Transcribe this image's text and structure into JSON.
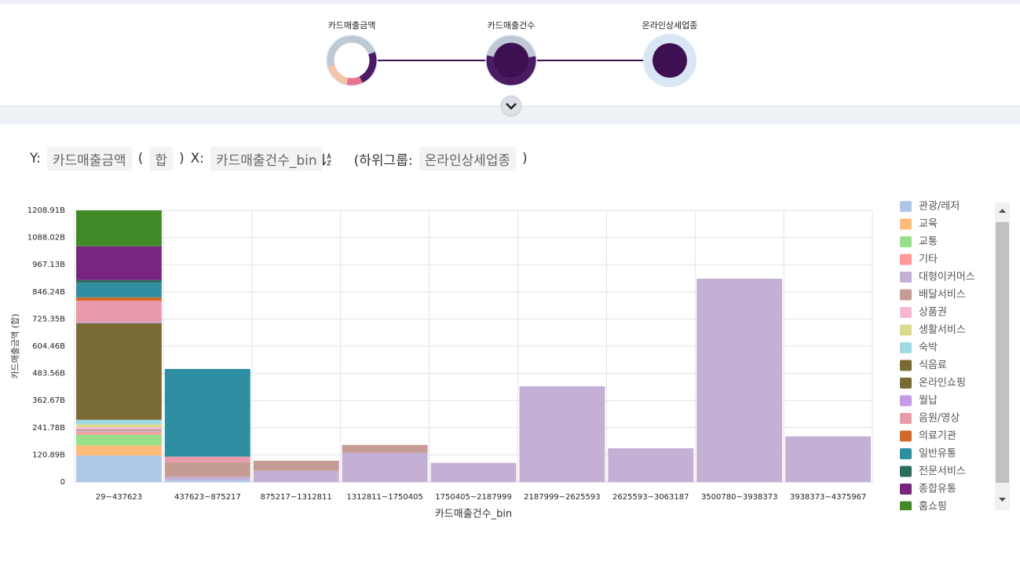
{
  "pipeline": {
    "nodes": [
      "카드매출금액",
      "카드매출건수",
      "온라인상세업종"
    ]
  },
  "query": {
    "y_prefix": "Y:",
    "y_field": "카드매출금액",
    "open": "(",
    "agg": "합",
    "close": ")",
    "x_prefix": "X:",
    "x_field": "카드매출건수_bin",
    "group_prefix": "(하위그룹:",
    "group_field": "온라인상세업종",
    "group_close": ")"
  },
  "chart_data": {
    "type": "bar",
    "stacked": true,
    "grid": true,
    "legend": "right",
    "x_label": "카드매출건수_bin",
    "y_label": "카드매출금액 (합)",
    "categories": [
      "29~437623",
      "437623~875217",
      "875217~1312811",
      "1312811~1750405",
      "1750405~2187999",
      "2187999~2625593",
      "2625593~3063187",
      "3500780~3938373",
      "3938373~4375967"
    ],
    "ylim": [
      0,
      1208.91
    ],
    "yticks": [
      0,
      {
        "value": 120.89,
        "label": "120.89B"
      },
      {
        "value": 241.78,
        "label": "241.78B"
      },
      {
        "value": 362.67,
        "label": "362.67B"
      },
      {
        "value": 483.56,
        "label": "483.56B"
      },
      {
        "value": 604.46,
        "label": "604.46B"
      },
      {
        "value": 725.35,
        "label": "725.35B"
      },
      {
        "value": 846.24,
        "label": "846.24B"
      },
      {
        "value": 967.13,
        "label": "967.13B"
      },
      {
        "value": 1088.02,
        "label": "1088.02B"
      },
      {
        "value": 1208.91,
        "label": "1208.91B"
      }
    ],
    "series": [
      {
        "name": "관광/레저",
        "color": "#aec7e8",
        "values": [
          118,
          8,
          0,
          0,
          0,
          0,
          0,
          0,
          0
        ]
      },
      {
        "name": "교육",
        "color": "#ffbb78",
        "values": [
          45,
          0,
          0,
          0,
          0,
          0,
          0,
          0,
          0
        ]
      },
      {
        "name": "교통",
        "color": "#98df8a",
        "values": [
          48,
          0,
          0,
          0,
          0,
          0,
          0,
          0,
          0
        ]
      },
      {
        "name": "기타",
        "color": "#ff9896",
        "values": [
          10,
          0,
          0,
          0,
          0,
          0,
          0,
          0,
          0
        ]
      },
      {
        "name": "대형이커머스",
        "color": "#c5b0d5",
        "values": [
          5,
          15,
          50,
          130,
          85,
          426,
          150,
          905,
          203
        ]
      },
      {
        "name": "배달서비스",
        "color": "#c49c94",
        "values": [
          8,
          65,
          45,
          35,
          0,
          0,
          0,
          0,
          0
        ]
      },
      {
        "name": "상품권",
        "color": "#f7b6d2",
        "values": [
          10,
          0,
          0,
          0,
          0,
          0,
          0,
          0,
          0
        ]
      },
      {
        "name": "생활서비스",
        "color": "#dbdb8d",
        "values": [
          13,
          0,
          0,
          0,
          0,
          0,
          0,
          0,
          0
        ]
      },
      {
        "name": "숙박",
        "color": "#9edae5",
        "values": [
          20,
          0,
          0,
          0,
          0,
          0,
          0,
          0,
          0
        ]
      },
      {
        "name": "식음료",
        "color": "#7a6a33",
        "values": [
          430,
          0,
          0,
          0,
          0,
          0,
          0,
          0,
          0
        ]
      },
      {
        "name": "온라인쇼핑",
        "color": "#786a34",
        "values": [
          0,
          0,
          0,
          0,
          0,
          0,
          0,
          0,
          0
        ]
      },
      {
        "name": "월납",
        "color": "#c49be6",
        "values": [
          5,
          0,
          0,
          0,
          0,
          0,
          0,
          0,
          0
        ]
      },
      {
        "name": "음원/영상",
        "color": "#e99aab",
        "values": [
          95,
          25,
          0,
          0,
          0,
          0,
          0,
          0,
          0
        ]
      },
      {
        "name": "의료기관",
        "color": "#d2692a",
        "values": [
          15,
          0,
          0,
          0,
          0,
          0,
          0,
          0,
          0
        ]
      },
      {
        "name": "일반유통",
        "color": "#2e8fa3",
        "values": [
          65,
          390,
          0,
          0,
          0,
          0,
          0,
          0,
          0
        ]
      },
      {
        "name": "전문서비스",
        "color": "#2b6d5c",
        "values": [
          12,
          0,
          0,
          0,
          0,
          0,
          0,
          0,
          0
        ]
      },
      {
        "name": "종합유통",
        "color": "#77257f",
        "values": [
          150,
          0,
          0,
          0,
          0,
          0,
          0,
          0,
          0
        ]
      },
      {
        "name": "홈쇼핑",
        "color": "#3f8a27",
        "values": [
          160,
          0,
          0,
          0,
          0,
          0,
          0,
          0,
          0
        ]
      }
    ]
  }
}
